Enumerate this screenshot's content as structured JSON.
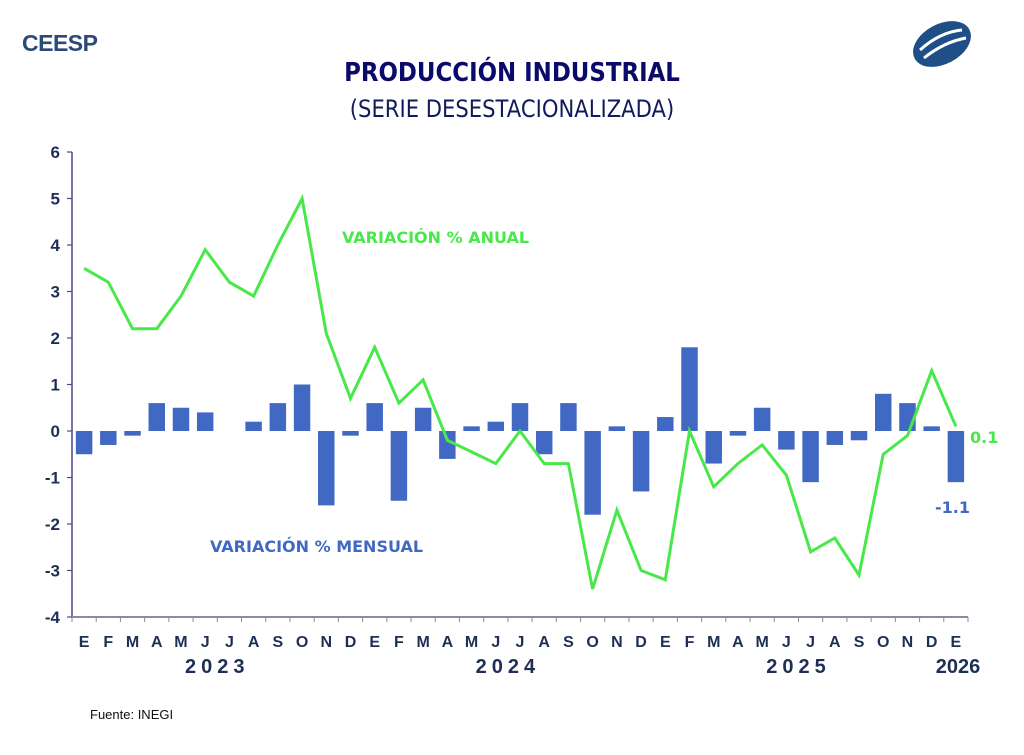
{
  "header": {
    "brand": "CEESP",
    "logo": "ceesp-logo",
    "title": "PRODUCCIÓN INDUSTRIAL",
    "subtitle": "(SERIE DESESTACIONALIZADA)"
  },
  "footer": {
    "source": "Fuente: INEGI"
  },
  "colors": {
    "annual": "#49e84a",
    "monthly": "#4169c4",
    "axis": "#4a4a8a",
    "text": "#1e2f55"
  },
  "chart_data": {
    "type": "bar+line",
    "title": "PRODUCCIÓN INDUSTRIAL",
    "subtitle": "(SERIE DESESTACIONALIZADA)",
    "ylim": [
      -4,
      6
    ],
    "yticks": [
      "6",
      "5",
      "4",
      "3",
      "2",
      "1",
      "0",
      "-1",
      "-2",
      "-3",
      "-4"
    ],
    "ytick_values": [
      6,
      5,
      4,
      3,
      2,
      1,
      0,
      -1,
      -2,
      -3,
      -4
    ],
    "categories": [
      "E",
      "F",
      "M",
      "A",
      "M",
      "J",
      "J",
      "A",
      "S",
      "O",
      "N",
      "D",
      "E",
      "F",
      "M",
      "A",
      "M",
      "J",
      "J",
      "A",
      "S",
      "O",
      "N",
      "D",
      "E",
      "F",
      "M",
      "A",
      "M",
      "J",
      "J",
      "A",
      "S",
      "O",
      "N",
      "D",
      "E"
    ],
    "years": [
      {
        "label": "2023",
        "start": 0,
        "end": 11
      },
      {
        "label": "2024",
        "start": 12,
        "end": 23
      },
      {
        "label": "2025",
        "start": 24,
        "end": 35
      },
      {
        "label": "2026",
        "start": 36,
        "end": 36
      }
    ],
    "grid": false,
    "series": [
      {
        "name": "VARIACIÓN % MENSUAL",
        "type": "bar",
        "values": [
          -0.5,
          -0.3,
          -0.1,
          0.6,
          0.5,
          0.4,
          0.0,
          0.2,
          0.6,
          1.0,
          -1.6,
          -0.1,
          0.6,
          -1.5,
          0.5,
          -0.6,
          0.1,
          0.2,
          0.6,
          -0.5,
          0.6,
          -1.8,
          0.1,
          -1.3,
          0.3,
          1.8,
          -0.7,
          -0.1,
          0.5,
          -0.4,
          -1.1,
          -0.3,
          -0.2,
          0.8,
          0.6,
          0.1,
          -1.1
        ],
        "end_label": "-1.1"
      },
      {
        "name": "VARIACIÓN % ANUAL",
        "type": "line",
        "values": [
          3.5,
          3.2,
          2.2,
          2.2,
          2.9,
          3.9,
          3.2,
          2.9,
          4.0,
          5.0,
          2.1,
          0.7,
          1.8,
          0.6,
          1.1,
          -0.2,
          -0.45,
          -0.7,
          0.0,
          -0.7,
          -0.7,
          -3.4,
          -1.7,
          -3.0,
          -3.2,
          0.0,
          -1.2,
          -0.7,
          -0.3,
          -0.95,
          -2.6,
          -2.3,
          -3.1,
          -0.5,
          -0.1,
          1.3,
          0.1
        ],
        "end_label": "0.1"
      }
    ]
  }
}
